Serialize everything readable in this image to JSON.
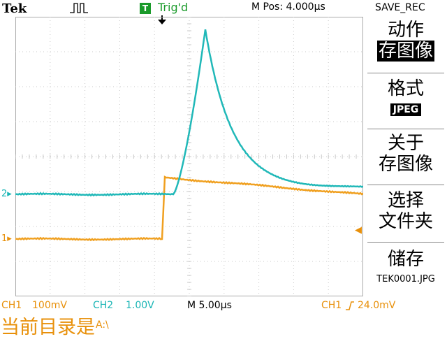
{
  "header": {
    "brand": "Tek",
    "acquire_icon": "pulse-icon",
    "trigger_badge": "T",
    "trigger_status": "Trig'd",
    "horizontal_position": "M Pos: 4.000µs",
    "menu_title": "SAVE_REC"
  },
  "menu": {
    "action_label": "动作",
    "action_value": "存图像",
    "format_label": "格式",
    "format_value": "JPEG",
    "about_line1": "关于",
    "about_line2": "存图像",
    "select_line1": "选择",
    "select_line2": "文件夹",
    "save_label": "储存",
    "save_filename": "TEK0001.JPG"
  },
  "status": {
    "ch1_label": "CH1",
    "ch1_scale": "100mV",
    "ch2_label": "CH2",
    "ch2_scale": "1.00V",
    "timebase": "M 5.00µs",
    "trigger_source": "CH1",
    "trigger_level": "24.0mV"
  },
  "footer": {
    "current_dir_label": "当前目录是",
    "current_dir_value": "A:\\"
  },
  "markers": {
    "ch1": "1",
    "ch2": "2"
  },
  "colors": {
    "ch1": "#f0a020",
    "ch2": "#20b8b8",
    "trig": "#1a9a2a",
    "grid": "#c8c8c8"
  }
}
